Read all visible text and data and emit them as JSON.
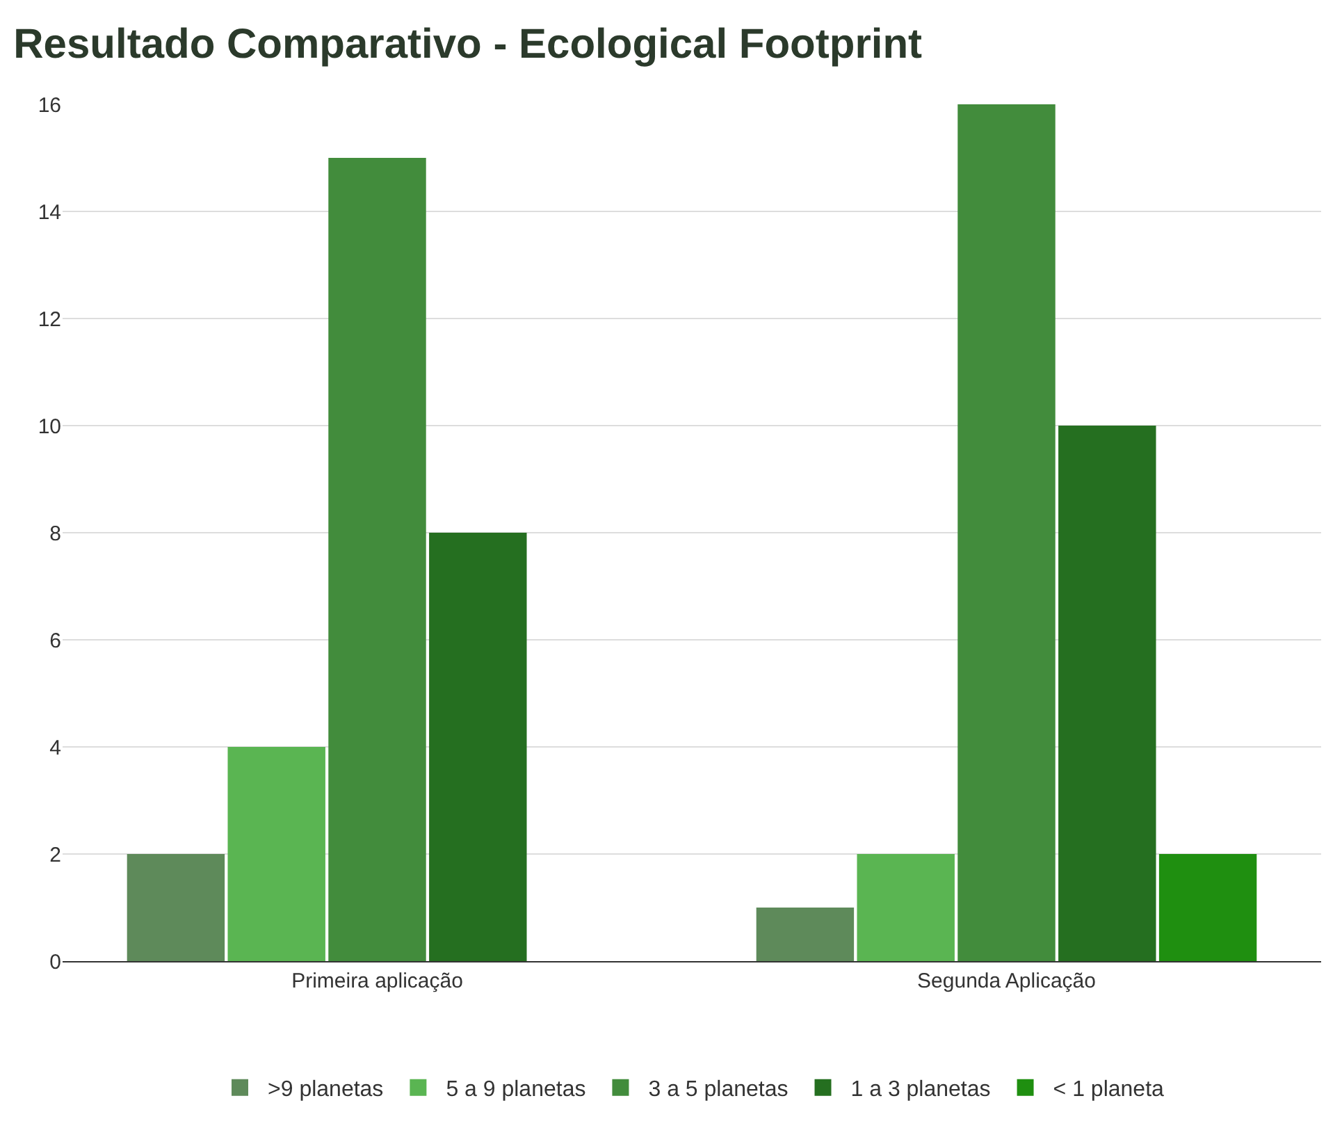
{
  "chart_data": {
    "type": "bar",
    "title": "Resultado Comparativo - Ecological Footprint",
    "categories": [
      "Primeira aplicação",
      "Segunda Aplicação"
    ],
    "series": [
      {
        "name": ">9 planetas",
        "color": "#5e8a5a",
        "values": [
          2,
          1
        ]
      },
      {
        "name": "5 a 9 planetas",
        "color": "#5ab552",
        "values": [
          4,
          2
        ]
      },
      {
        "name": "3 a 5 planetas",
        "color": "#428c3c",
        "values": [
          15,
          16
        ]
      },
      {
        "name": "1 a 3 planetas",
        "color": "#256f20",
        "values": [
          8,
          10
        ]
      },
      {
        "name": "< 1 planeta",
        "color": "#1f8f10",
        "values": [
          0,
          2
        ]
      }
    ],
    "ylim": [
      0,
      16
    ],
    "yticks": [
      0,
      2,
      4,
      6,
      8,
      10,
      12,
      14,
      16
    ],
    "grid": "y",
    "legend": "bottom"
  }
}
